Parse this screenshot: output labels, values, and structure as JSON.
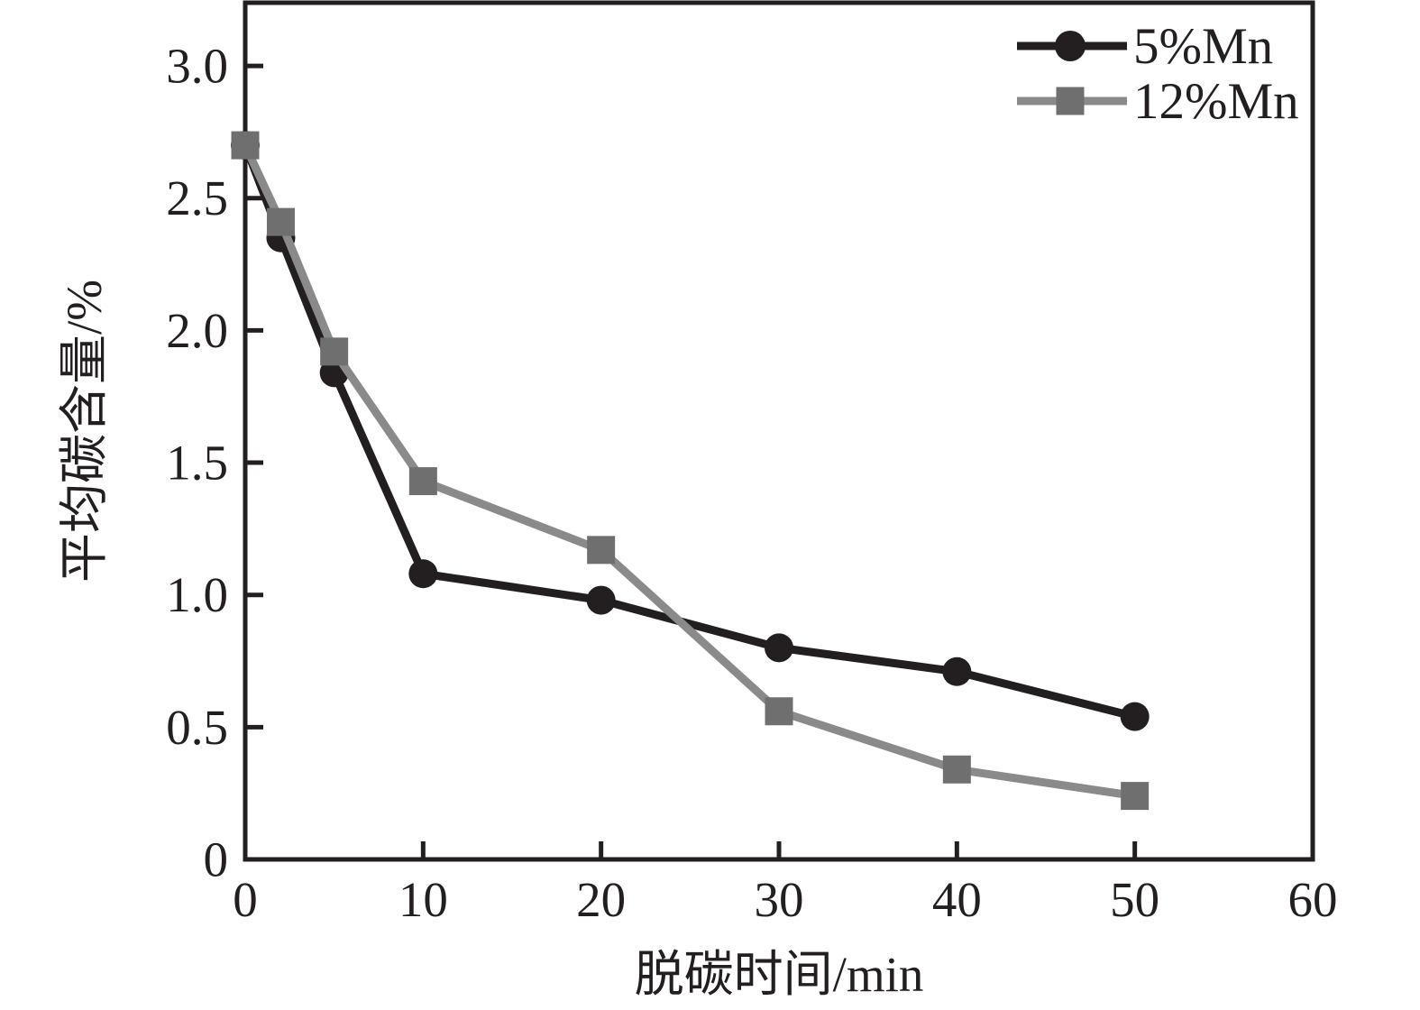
{
  "chart_data": {
    "type": "line",
    "title": "",
    "xlabel": "脱碳时间/min",
    "ylabel": "平均碳含量/%",
    "x": [
      0,
      2,
      5,
      10,
      20,
      30,
      40,
      50
    ],
    "series": [
      {
        "name": "5%Mn",
        "marker": "circle",
        "line_color": "#231f20",
        "marker_color": "#231f20",
        "values": [
          2.7,
          2.35,
          1.84,
          1.08,
          0.98,
          0.8,
          0.71,
          0.54
        ]
      },
      {
        "name": "12%Mn",
        "marker": "square",
        "line_color": "#8a8a8a",
        "marker_color": "#6f6f6f",
        "values": [
          2.7,
          2.41,
          1.92,
          1.43,
          1.17,
          0.56,
          0.34,
          0.24
        ]
      }
    ],
    "xlim": [
      0,
      60
    ],
    "ylim": [
      0,
      3.239
    ],
    "x_ticks": [
      0,
      10,
      20,
      30,
      40,
      50,
      60
    ],
    "x_tick_labels": [
      "0",
      "10",
      "20",
      "30",
      "40",
      "50",
      "60"
    ],
    "y_ticks": [
      0,
      0.5,
      1.0,
      1.5,
      2.0,
      2.5,
      3.0
    ],
    "y_tick_labels": [
      "0",
      "0.5",
      "1.0",
      "1.5",
      "2.0",
      "2.5",
      "3.0"
    ],
    "grid": false,
    "legend_position": "top-right",
    "legend_labels": [
      "5%Mn",
      "12%Mn"
    ]
  },
  "colors": {
    "background": "#ffffff",
    "axis": "#231f20",
    "text": "#231f20",
    "series_5mn": "#231f20",
    "series_12mn_line": "#8a8a8a",
    "series_12mn_marker": "#6f6f6f"
  }
}
